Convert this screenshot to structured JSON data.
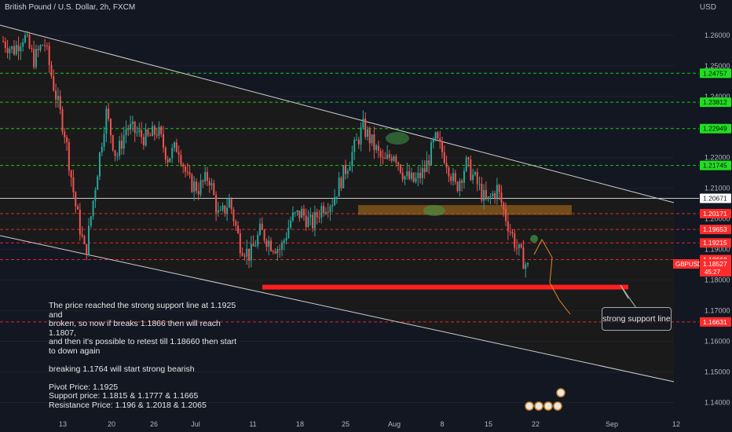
{
  "header": {
    "symbol_title": "British Pound / U.S. Dollar, 2h, FXCM",
    "currency": "USD"
  },
  "colors": {
    "background": "#131722",
    "candle_up": "#26a69a",
    "candle_down": "#ef5350",
    "support_line": "#ff1f1f",
    "green_label": "#1fe01f",
    "red_label": "#ff2b2b",
    "channel": "#cfcfcf",
    "zone": "#b8741a"
  },
  "annotation": {
    "note_lines": [
      "The price reached the strong support line at 1.1925 and",
      "broken, so now if breaks 1.1866 then will reach 1.1807,",
      "and then it's  possible to retest till 1.18660 then start",
      "to down again",
      "",
      "breaking  1.1764 will start strong bearish",
      "",
      "Pivot Price: 1.1925",
      "Support price:  1.1815 & 1.1777 & 1.1665",
      "Resistance Price: 1.196 & 1.2018 & 1.2065"
    ],
    "callout": "strong support line"
  },
  "chart_data": {
    "type": "candlestick",
    "symbol": "GBPUSD",
    "ylim": [
      1.1355,
      1.2715
    ],
    "y_ticks": [
      "1.26000",
      "1.25000",
      "1.24000",
      "1.23000",
      "1.22000",
      "1.21000",
      "1.20000",
      "1.19000",
      "1.18000",
      "1.17000",
      "1.16000",
      "1.15000",
      "1.14000"
    ],
    "y_tick_values": [
      1.26,
      1.25,
      1.24,
      1.23,
      1.22,
      1.21,
      1.2,
      1.19,
      1.18,
      1.17,
      1.16,
      1.15,
      1.14
    ],
    "x_ticks": [
      "13",
      "20",
      "26",
      "Jul",
      "11",
      "18",
      "25",
      "Aug",
      "8",
      "15",
      "22",
      "Sep",
      "12"
    ],
    "price_levels": [
      {
        "label": "1.24757",
        "value": 1.24757,
        "style": "green-dashed"
      },
      {
        "label": "1.23812",
        "value": 1.23812,
        "style": "green-dashed"
      },
      {
        "label": "1.22949",
        "value": 1.22949,
        "style": "green-dashed"
      },
      {
        "label": "1.21745",
        "value": 1.21745,
        "style": "green-dashed"
      },
      {
        "label": "1.20671",
        "value": 1.20671,
        "style": "white-solid"
      },
      {
        "label": "1.20171",
        "value": 1.20171,
        "style": "red-dashed"
      },
      {
        "label": "1.19653",
        "value": 1.19653,
        "style": "red-dashed"
      },
      {
        "label": "1.19215",
        "value": 1.19215,
        "style": "red-dashed"
      },
      {
        "label": "1.18668",
        "value": 1.18668,
        "style": "red-dashed"
      },
      {
        "label": "1.16631",
        "value": 1.16631,
        "style": "red-dashed"
      }
    ],
    "current_price": {
      "symbol_label": "GBPUSD",
      "price_label": "1.18527",
      "value": 1.18527,
      "countdown": "45:27"
    },
    "support_line_value": 1.1777,
    "zone": {
      "top": 1.2045,
      "bottom": 1.2013
    },
    "price_path": [
      1.258,
      1.255,
      1.26,
      1.252,
      1.258,
      1.242,
      1.228,
      1.205,
      1.188,
      1.212,
      1.235,
      1.22,
      1.23,
      1.228,
      1.226,
      1.229,
      1.22,
      1.224,
      1.212,
      1.21,
      1.214,
      1.2,
      1.206,
      1.192,
      1.188,
      1.196,
      1.192,
      1.19,
      1.2,
      1.202,
      1.198,
      1.204,
      1.206,
      1.214,
      1.222,
      1.23,
      1.224,
      1.218,
      1.222,
      1.214,
      1.212,
      1.216,
      1.226,
      1.22,
      1.21,
      1.218,
      1.212,
      1.205,
      1.21,
      1.199,
      1.19,
      1.184
    ]
  }
}
